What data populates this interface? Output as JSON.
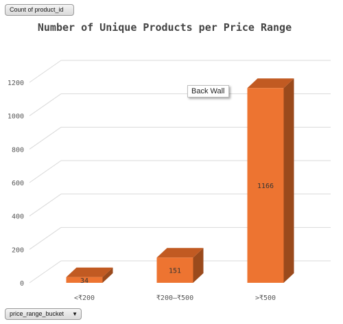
{
  "pivot": {
    "value_field": "Count of product_id",
    "axis_field": "price_range_bucket"
  },
  "tooltip": "Back Wall",
  "colors": {
    "bar_front": "#ed7431",
    "bar_top": "#c15a22",
    "bar_side": "#9a4a1c",
    "grid": "#d9d9d9"
  },
  "chart_data": {
    "type": "bar",
    "title": "Number of Unique Products per Price Range",
    "categories": [
      "<₹200",
      "₹200–₹500",
      ">₹500"
    ],
    "values": [
      34,
      151,
      1166
    ],
    "data_labels": [
      "34",
      "151",
      "1166"
    ],
    "y_ticks": [
      0,
      200,
      400,
      600,
      800,
      1000,
      1200
    ],
    "ylim": [
      0,
      1200
    ],
    "grid": true,
    "legend": "none",
    "style": "3d-column"
  }
}
